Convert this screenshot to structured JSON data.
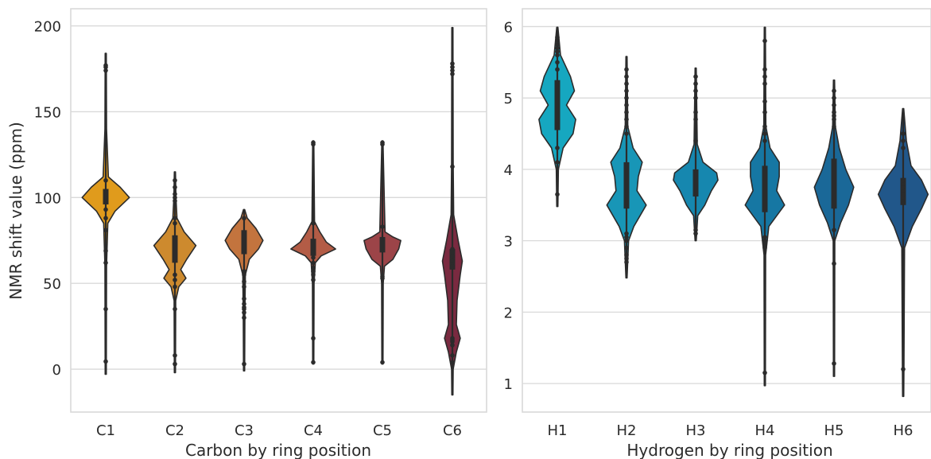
{
  "colors": {
    "carbon": [
      "#e09b1c",
      "#cd8a2e",
      "#c3743e",
      "#b35c46",
      "#9c4448",
      "#7a2a40"
    ],
    "hydrogen": [
      "#16a7c0",
      "#1896b7",
      "#1687af",
      "#1677a3",
      "#1a6898",
      "#21578a"
    ],
    "outline": "#2b2b2b",
    "grid": "#d9d9d9"
  },
  "chart_data": [
    {
      "type": "violin",
      "xlabel": "Carbon by ring position",
      "ylabel": "NMR shift value (ppm)",
      "ylim": [
        -25,
        210
      ],
      "yticks": [
        0,
        50,
        100,
        150,
        200
      ],
      "grid": true,
      "categories": [
        "C1",
        "C2",
        "C3",
        "C4",
        "C5",
        "C6"
      ],
      "violins": [
        {
          "label": "C1",
          "min": -3,
          "max": 184,
          "q1": 96,
          "q3": 105,
          "median": 100,
          "profile": [
            [
              -3,
              0.02
            ],
            [
              60,
              0.03
            ],
            [
              85,
              0.08
            ],
            [
              92,
              0.35
            ],
            [
              100,
              0.9
            ],
            [
              106,
              0.55
            ],
            [
              112,
              0.1
            ],
            [
              140,
              0.03
            ],
            [
              184,
              0.02
            ]
          ],
          "points": [
            4.5,
            35,
            62,
            69,
            81,
            88,
            93,
            110,
            174,
            176,
            177
          ]
        },
        {
          "label": "C2",
          "min": -2,
          "max": 115,
          "q1": 62,
          "q3": 78,
          "median": 72,
          "profile": [
            [
              -2,
              0.02
            ],
            [
              40,
              0.03
            ],
            [
              48,
              0.15
            ],
            [
              53,
              0.42
            ],
            [
              58,
              0.22
            ],
            [
              64,
              0.45
            ],
            [
              72,
              0.8
            ],
            [
              80,
              0.35
            ],
            [
              88,
              0.08
            ],
            [
              100,
              0.04
            ],
            [
              115,
              0.02
            ]
          ],
          "points": [
            3,
            8,
            35,
            48,
            52,
            55,
            85,
            88,
            98,
            100,
            102,
            106,
            110
          ]
        },
        {
          "label": "C3",
          "min": -1,
          "max": 93,
          "q1": 67,
          "q3": 81,
          "median": 75,
          "profile": [
            [
              -1,
              0.02
            ],
            [
              30,
              0.03
            ],
            [
              55,
              0.05
            ],
            [
              64,
              0.2
            ],
            [
              70,
              0.55
            ],
            [
              75,
              0.72
            ],
            [
              82,
              0.45
            ],
            [
              88,
              0.12
            ],
            [
              93,
              0.02
            ]
          ],
          "points": [
            3,
            30,
            33,
            35,
            36,
            38,
            41,
            48,
            51,
            55,
            57,
            88
          ]
        },
        {
          "label": "C4",
          "min": 3,
          "max": 133,
          "q1": 66,
          "q3": 76,
          "median": 71,
          "profile": [
            [
              3,
              0.02
            ],
            [
              50,
              0.03
            ],
            [
              62,
              0.08
            ],
            [
              66,
              0.3
            ],
            [
              70,
              0.85
            ],
            [
              74,
              0.5
            ],
            [
              80,
              0.25
            ],
            [
              86,
              0.05
            ],
            [
              133,
              0.02
            ]
          ],
          "points": [
            4,
            18,
            52,
            55,
            57,
            59,
            62,
            65,
            85,
            131,
            132
          ]
        },
        {
          "label": "C5",
          "min": 3,
          "max": 133,
          "q1": 68,
          "q3": 77,
          "median": 73,
          "profile": [
            [
              3,
              0.02
            ],
            [
              50,
              0.03
            ],
            [
              60,
              0.08
            ],
            [
              64,
              0.4
            ],
            [
              70,
              0.62
            ],
            [
              75,
              0.7
            ],
            [
              77,
              0.4
            ],
            [
              80,
              0.1
            ],
            [
              133,
              0.02
            ]
          ],
          "points": [
            4,
            53,
            54,
            83,
            131,
            132
          ]
        },
        {
          "label": "C6",
          "min": -15,
          "max": 199,
          "q1": 58,
          "q3": 70,
          "median": 63,
          "profile": [
            [
              -15,
              0.02
            ],
            [
              0,
              0.03
            ],
            [
              10,
              0.15
            ],
            [
              18,
              0.3
            ],
            [
              26,
              0.15
            ],
            [
              40,
              0.18
            ],
            [
              55,
              0.3
            ],
            [
              63,
              0.38
            ],
            [
              75,
              0.22
            ],
            [
              90,
              0.05
            ],
            [
              120,
              0.03
            ],
            [
              199,
              0.02
            ]
          ],
          "points": [
            4,
            8,
            14,
            16,
            17,
            18,
            60,
            63,
            66,
            70,
            118,
            172,
            174,
            176,
            178
          ]
        }
      ]
    },
    {
      "type": "violin",
      "xlabel": "Hydrogen by ring position",
      "ylabel": "",
      "ylim": [
        0.6,
        6.25
      ],
      "yticks": [
        1,
        2,
        3,
        4,
        5,
        6
      ],
      "grid": true,
      "categories": [
        "H1",
        "H2",
        "H3",
        "H4",
        "H5",
        "H6"
      ],
      "violins": [
        {
          "label": "H1",
          "min": 3.48,
          "max": 5.99,
          "q1": 4.55,
          "q3": 5.25,
          "median": 4.9,
          "profile": [
            [
              3.48,
              0.02
            ],
            [
              4.0,
              0.04
            ],
            [
              4.3,
              0.22
            ],
            [
              4.5,
              0.6
            ],
            [
              4.7,
              0.7
            ],
            [
              4.9,
              0.35
            ],
            [
              5.1,
              0.65
            ],
            [
              5.3,
              0.5
            ],
            [
              5.6,
              0.12
            ],
            [
              5.99,
              0.02
            ]
          ],
          "points": [
            3.65,
            4.1,
            4.3,
            5.4,
            5.5,
            5.6,
            5.65,
            5.7,
            5.75,
            5.8,
            5.85
          ]
        },
        {
          "label": "H2",
          "min": 2.48,
          "max": 5.58,
          "q1": 3.45,
          "q3": 4.1,
          "median": 3.8,
          "profile": [
            [
              2.48,
              0.02
            ],
            [
              3.0,
              0.08
            ],
            [
              3.2,
              0.28
            ],
            [
              3.5,
              0.75
            ],
            [
              3.7,
              0.4
            ],
            [
              3.9,
              0.45
            ],
            [
              4.1,
              0.6
            ],
            [
              4.3,
              0.25
            ],
            [
              4.6,
              0.05
            ],
            [
              5.58,
              0.02
            ]
          ],
          "points": [
            2.7,
            2.75,
            2.8,
            2.9,
            3.0,
            3.05,
            3.1,
            4.5,
            4.6,
            4.7,
            4.8,
            4.9,
            5.0,
            5.1,
            5.2,
            5.3,
            5.4
          ]
        },
        {
          "label": "H3",
          "min": 3.0,
          "max": 5.42,
          "q1": 3.62,
          "q3": 4.0,
          "median": 3.82,
          "profile": [
            [
              3.0,
              0.02
            ],
            [
              3.35,
              0.08
            ],
            [
              3.5,
              0.35
            ],
            [
              3.7,
              0.6
            ],
            [
              3.85,
              0.85
            ],
            [
              3.95,
              0.8
            ],
            [
              4.1,
              0.28
            ],
            [
              4.35,
              0.06
            ],
            [
              5.42,
              0.02
            ]
          ],
          "points": [
            3.1,
            3.15,
            4.4,
            4.7,
            4.8,
            5.0,
            5.1,
            5.2,
            5.3
          ]
        },
        {
          "label": "H4",
          "min": 0.97,
          "max": 5.99,
          "q1": 3.4,
          "q3": 4.05,
          "median": 3.7,
          "profile": [
            [
              0.97,
              0.02
            ],
            [
              2.8,
              0.03
            ],
            [
              3.2,
              0.15
            ],
            [
              3.5,
              0.75
            ],
            [
              3.7,
              0.45
            ],
            [
              3.9,
              0.55
            ],
            [
              4.1,
              0.55
            ],
            [
              4.3,
              0.2
            ],
            [
              4.6,
              0.04
            ],
            [
              5.99,
              0.02
            ]
          ],
          "points": [
            1.15,
            2.9,
            2.95,
            3.0,
            3.05,
            4.4,
            4.5,
            4.6,
            4.8,
            4.95,
            5.2,
            5.3,
            5.4,
            5.8
          ]
        },
        {
          "label": "H5",
          "min": 1.1,
          "max": 5.25,
          "q1": 3.45,
          "q3": 4.15,
          "median": 3.78,
          "profile": [
            [
              1.1,
              0.02
            ],
            [
              3.0,
              0.03
            ],
            [
              3.25,
              0.25
            ],
            [
              3.5,
              0.55
            ],
            [
              3.75,
              0.75
            ],
            [
              4.0,
              0.45
            ],
            [
              4.3,
              0.2
            ],
            [
              4.6,
              0.05
            ],
            [
              5.25,
              0.02
            ]
          ],
          "points": [
            1.28,
            2.68,
            3.15,
            4.6,
            4.7,
            4.75,
            4.8,
            4.9,
            5.0,
            5.1
          ]
        },
        {
          "label": "H6",
          "min": 0.82,
          "max": 4.85,
          "q1": 3.5,
          "q3": 3.88,
          "median": 3.68,
          "profile": [
            [
              0.82,
              0.02
            ],
            [
              1.3,
              0.03
            ],
            [
              2.9,
              0.05
            ],
            [
              3.2,
              0.35
            ],
            [
              3.45,
              0.7
            ],
            [
              3.65,
              0.95
            ],
            [
              3.85,
              0.7
            ],
            [
              4.05,
              0.3
            ],
            [
              4.4,
              0.12
            ],
            [
              4.85,
              0.02
            ]
          ],
          "points": [
            1.2,
            3.55,
            3.65,
            3.7,
            3.75,
            3.8,
            3.85,
            4.3,
            4.4,
            4.5
          ]
        }
      ]
    }
  ]
}
